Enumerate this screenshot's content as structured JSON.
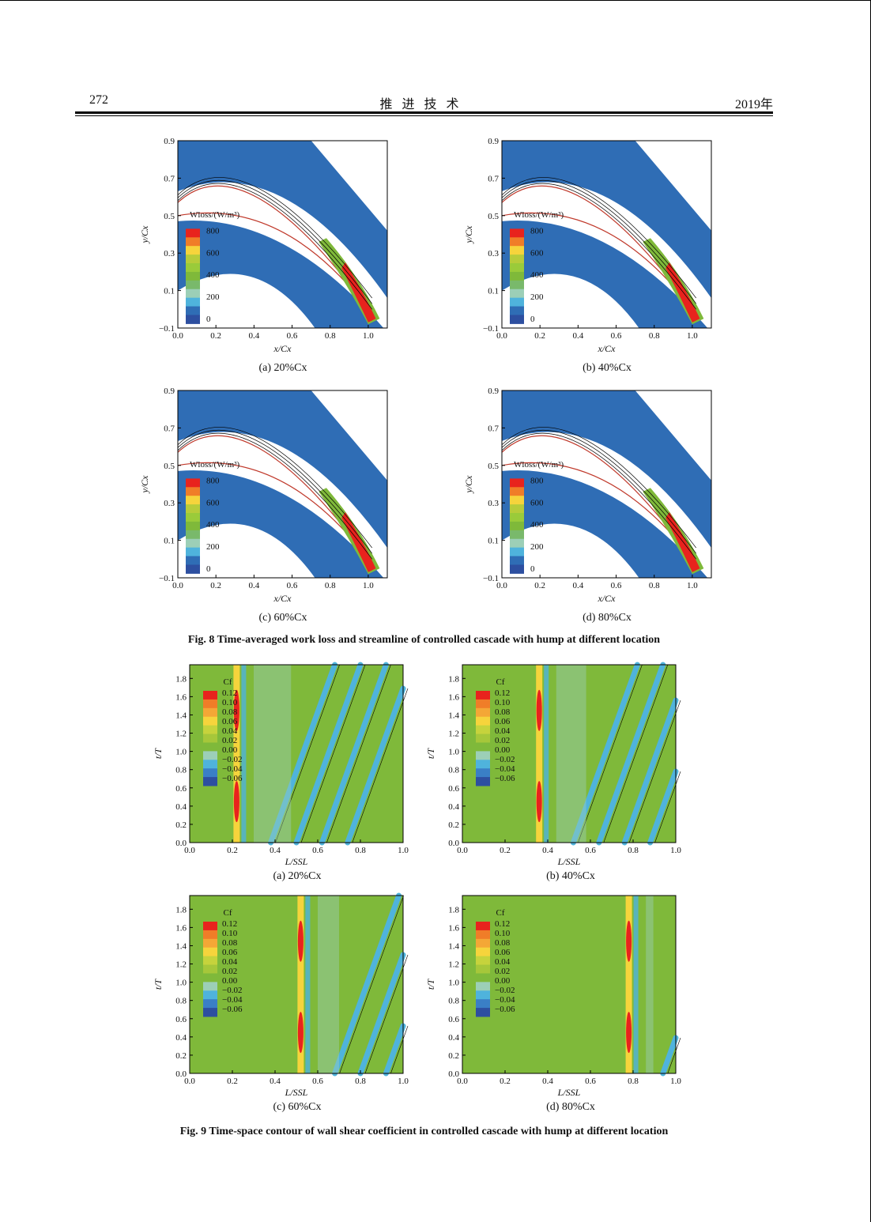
{
  "header": {
    "page_number": "272",
    "journal": "推进技术",
    "year": "2019年"
  },
  "fig8": {
    "caption": "Fig. 8    Time-averaged work loss and streamline of controlled cascade with hump at different location",
    "x_ticks": [
      "0.0",
      "0.2",
      "0.4",
      "0.6",
      "0.8",
      "1.0"
    ],
    "y_ticks": [
      "0.9",
      "0.7",
      "0.5",
      "0.3",
      "0.1",
      "-0.1"
    ],
    "x_label": "x/Cx",
    "y_label": "y/Cx",
    "legend_title": "Wloss/(W/m³)",
    "legend_ticks": [
      "800",
      "600",
      "400",
      "200",
      "0"
    ],
    "panels": [
      {
        "caption": "(a) 20%Cx"
      },
      {
        "caption": "(b) 40%Cx"
      },
      {
        "caption": "(c) 60%Cx"
      },
      {
        "caption": "(d) 80%Cx"
      }
    ]
  },
  "fig9": {
    "caption": "Fig. 9    Time-space contour of wall shear coefficient in controlled cascade with hump at different location",
    "x_ticks": [
      "0.0",
      "0.2",
      "0.4",
      "0.6",
      "0.8",
      "1.0"
    ],
    "y_ticks": [
      "1.8",
      "1.6",
      "1.4",
      "1.2",
      "1.0",
      "0.8",
      "0.6",
      "0.4",
      "0.2",
      "0.0"
    ],
    "x_label": "L/SSL",
    "y_label": "t/T",
    "legend_title": "Cf",
    "legend_ticks": [
      "0.12",
      "0.10",
      "0.08",
      "0.06",
      "0.04",
      "0.02",
      "0.00",
      "-0.02",
      "-0.04",
      "-0.06"
    ],
    "panels": [
      {
        "caption": "(a) 20%Cx",
        "hump_x": 0.22
      },
      {
        "caption": "(b) 40%Cx",
        "hump_x": 0.36
      },
      {
        "caption": "(c) 60%Cx",
        "hump_x": 0.52
      },
      {
        "caption": "(d) 80%Cx",
        "hump_x": 0.78
      }
    ]
  },
  "colors": {
    "blue": "#2f6db5",
    "green": "#7fb93a",
    "teal": "#9ccfb7",
    "lightblue": "#4fb3dc",
    "darkblue": "#2d4fa0",
    "red": "#e8231d",
    "orange": "#f07d28",
    "yellow": "#f6d43c"
  }
}
